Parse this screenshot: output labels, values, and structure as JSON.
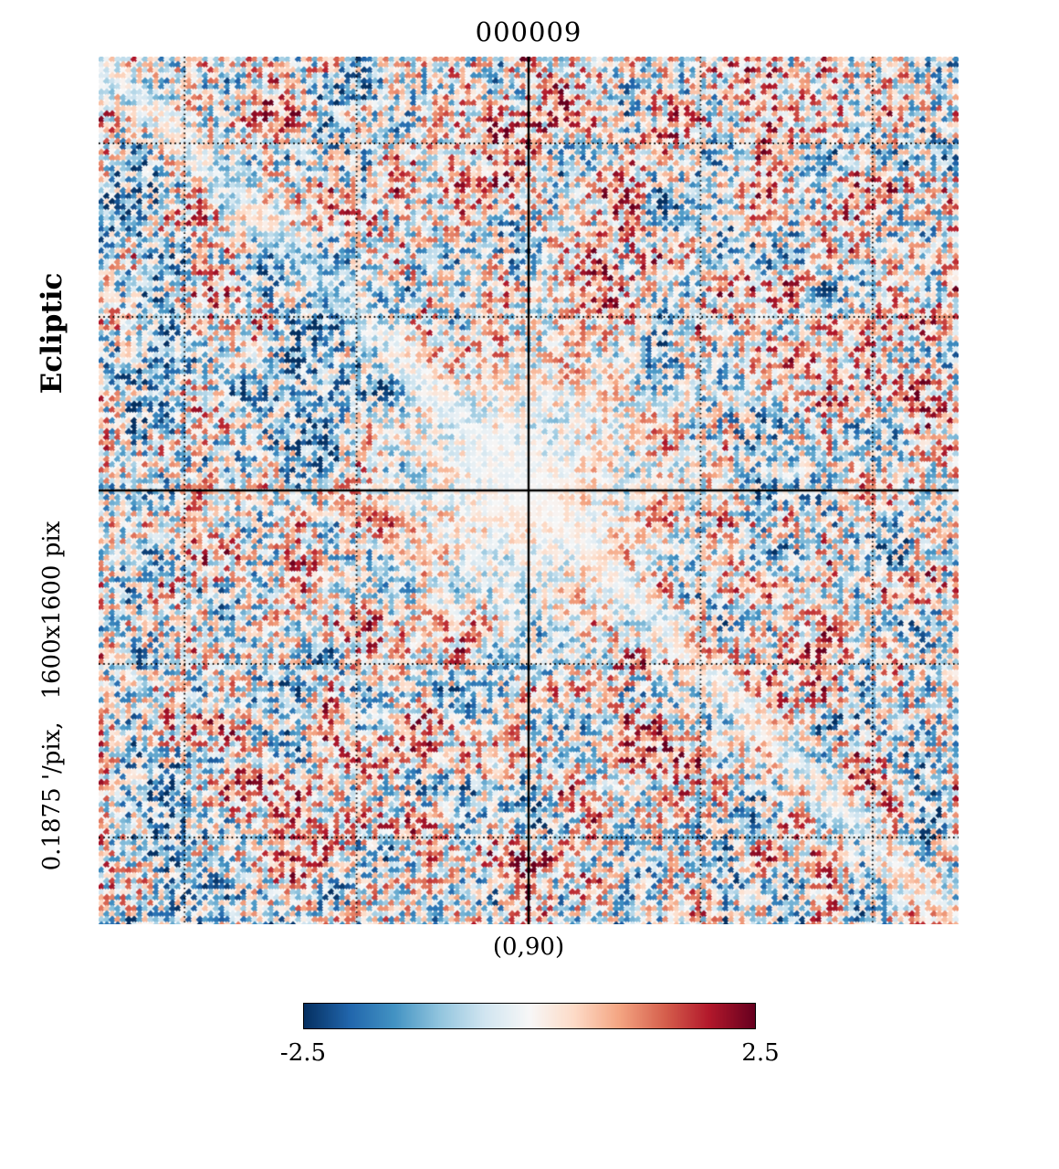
{
  "chart_data": {
    "type": "heatmap",
    "title": "000009",
    "coordinate_system": "Ecliptic",
    "resolution_label": "0.1875 '/pix,   1600x1600 pix",
    "projection_center_label": "(0,90)",
    "colormap": "RdBu_r",
    "value_range": [
      -2.5,
      2.5
    ],
    "colorbar_ticks": [
      "-2.5",
      "2.5"
    ],
    "colormap_stops": [
      "#053061",
      "#2166ac",
      "#4393c3",
      "#92c5de",
      "#d1e5f0",
      "#f7f7f7",
      "#fddbc7",
      "#f4a582",
      "#d6604d",
      "#b2182b",
      "#67001f"
    ],
    "grid": {
      "solid_fractions": [
        0.5
      ],
      "dotted_fractions": [
        0.1,
        0.3,
        0.7,
        0.9
      ]
    },
    "pattern_description": "gaussian noise field, whitened toward projection center and along main diagonal, rendered as diamond-shaped pixels"
  }
}
